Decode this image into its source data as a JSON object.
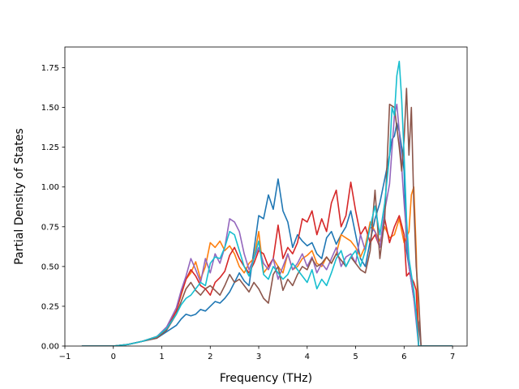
{
  "chart_data": {
    "type": "line",
    "title": "",
    "xlabel": "Frequency (THz)",
    "ylabel": "Partial Density of States",
    "xlim": [
      -1,
      7.3
    ],
    "ylim": [
      0,
      1.88
    ],
    "xticks": [
      -1,
      0,
      1,
      2,
      3,
      4,
      5,
      6,
      7
    ],
    "yticks": [
      0.0,
      0.25,
      0.5,
      0.75,
      1.0,
      1.25,
      1.5,
      1.75
    ],
    "xtick_labels": [
      "−1",
      "0",
      "1",
      "2",
      "3",
      "4",
      "5",
      "6",
      "7"
    ],
    "ytick_labels": [
      "0.00",
      "0.25",
      "0.50",
      "0.75",
      "1.00",
      "1.25",
      "1.50",
      "1.75"
    ],
    "grid": false,
    "legend": "none",
    "series": [
      {
        "color": "#1f77b4",
        "x": [
          -0.65,
          0.0,
          0.3,
          0.6,
          0.9,
          1.1,
          1.3,
          1.4,
          1.5,
          1.6,
          1.7,
          1.8,
          1.9,
          2.0,
          2.1,
          2.2,
          2.3,
          2.4,
          2.5,
          2.6,
          2.7,
          2.8,
          2.9,
          3.0,
          3.1,
          3.2,
          3.3,
          3.4,
          3.5,
          3.6,
          3.7,
          3.8,
          3.9,
          4.0,
          4.1,
          4.2,
          4.3,
          4.4,
          4.5,
          4.6,
          4.7,
          4.8,
          4.9,
          5.0,
          5.1,
          5.2,
          5.3,
          5.4,
          5.5,
          5.6,
          5.7,
          5.75,
          5.8,
          5.85,
          5.9,
          5.95,
          6.0,
          6.05,
          6.1,
          6.2,
          6.25,
          6.3,
          6.35,
          7.0
        ],
        "y": [
          0.0,
          0.0,
          0.01,
          0.03,
          0.05,
          0.09,
          0.13,
          0.17,
          0.2,
          0.19,
          0.2,
          0.23,
          0.22,
          0.25,
          0.28,
          0.27,
          0.3,
          0.34,
          0.4,
          0.46,
          0.41,
          0.38,
          0.6,
          0.82,
          0.8,
          0.95,
          0.86,
          1.05,
          0.85,
          0.78,
          0.62,
          0.7,
          0.66,
          0.63,
          0.65,
          0.58,
          0.55,
          0.68,
          0.72,
          0.64,
          0.7,
          0.75,
          0.85,
          0.7,
          0.55,
          0.5,
          0.66,
          0.8,
          0.9,
          1.05,
          1.2,
          1.3,
          1.32,
          1.4,
          1.35,
          1.25,
          1.1,
          0.6,
          0.5,
          0.3,
          0.2,
          0.15,
          0.0,
          0.0
        ]
      },
      {
        "color": "#ff7f0e",
        "x": [
          -0.65,
          0.0,
          0.3,
          0.6,
          0.9,
          1.1,
          1.3,
          1.4,
          1.5,
          1.6,
          1.7,
          1.8,
          1.9,
          2.0,
          2.1,
          2.2,
          2.3,
          2.4,
          2.5,
          2.6,
          2.7,
          2.8,
          2.9,
          3.0,
          3.1,
          3.2,
          3.3,
          3.4,
          3.5,
          3.6,
          3.7,
          3.8,
          3.9,
          4.0,
          4.1,
          4.2,
          4.3,
          4.4,
          4.5,
          4.6,
          4.7,
          4.8,
          4.9,
          5.0,
          5.1,
          5.2,
          5.3,
          5.4,
          5.5,
          5.6,
          5.7,
          5.8,
          5.9,
          6.0,
          6.1,
          6.15,
          6.2,
          6.25,
          6.3,
          7.0
        ],
        "y": [
          0.0,
          0.0,
          0.01,
          0.03,
          0.06,
          0.11,
          0.22,
          0.32,
          0.42,
          0.46,
          0.53,
          0.42,
          0.5,
          0.65,
          0.62,
          0.66,
          0.6,
          0.63,
          0.58,
          0.5,
          0.46,
          0.52,
          0.55,
          0.72,
          0.46,
          0.5,
          0.55,
          0.5,
          0.46,
          0.58,
          0.48,
          0.5,
          0.55,
          0.57,
          0.6,
          0.52,
          0.5,
          0.56,
          0.52,
          0.58,
          0.7,
          0.68,
          0.66,
          0.62,
          0.56,
          0.63,
          0.78,
          0.72,
          0.66,
          0.75,
          0.68,
          0.7,
          0.8,
          0.65,
          0.72,
          0.95,
          1.0,
          0.6,
          0.0,
          0.0
        ]
      },
      {
        "color": "#d62728",
        "x": [
          -0.65,
          0.0,
          0.3,
          0.6,
          0.9,
          1.1,
          1.3,
          1.4,
          1.5,
          1.6,
          1.7,
          1.8,
          1.9,
          2.0,
          2.1,
          2.2,
          2.3,
          2.4,
          2.5,
          2.6,
          2.7,
          2.8,
          2.9,
          3.0,
          3.1,
          3.2,
          3.3,
          3.4,
          3.5,
          3.6,
          3.7,
          3.8,
          3.9,
          4.0,
          4.1,
          4.2,
          4.3,
          4.4,
          4.5,
          4.6,
          4.7,
          4.8,
          4.9,
          5.0,
          5.1,
          5.2,
          5.3,
          5.4,
          5.5,
          5.6,
          5.7,
          5.8,
          5.9,
          6.0,
          6.05,
          6.1,
          6.2,
          6.25,
          6.3,
          7.0
        ],
        "y": [
          0.0,
          0.0,
          0.01,
          0.03,
          0.06,
          0.11,
          0.22,
          0.33,
          0.42,
          0.48,
          0.44,
          0.38,
          0.36,
          0.32,
          0.4,
          0.43,
          0.47,
          0.57,
          0.62,
          0.55,
          0.5,
          0.46,
          0.52,
          0.6,
          0.58,
          0.5,
          0.55,
          0.76,
          0.55,
          0.62,
          0.58,
          0.65,
          0.8,
          0.78,
          0.85,
          0.7,
          0.8,
          0.72,
          0.9,
          0.98,
          0.75,
          0.82,
          1.03,
          0.85,
          0.7,
          0.75,
          0.65,
          0.7,
          0.62,
          0.8,
          0.65,
          0.75,
          0.82,
          0.7,
          0.44,
          0.46,
          0.4,
          0.35,
          0.0,
          0.0
        ]
      },
      {
        "color": "#9467bd",
        "x": [
          -0.65,
          0.0,
          0.3,
          0.6,
          0.9,
          1.1,
          1.3,
          1.4,
          1.5,
          1.6,
          1.7,
          1.8,
          1.9,
          2.0,
          2.1,
          2.2,
          2.3,
          2.4,
          2.5,
          2.6,
          2.7,
          2.8,
          2.9,
          3.0,
          3.1,
          3.2,
          3.3,
          3.4,
          3.5,
          3.6,
          3.7,
          3.8,
          3.9,
          4.0,
          4.1,
          4.2,
          4.3,
          4.4,
          4.5,
          4.6,
          4.7,
          4.8,
          4.9,
          5.0,
          5.1,
          5.2,
          5.3,
          5.4,
          5.5,
          5.6,
          5.7,
          5.8,
          5.85,
          5.9,
          6.0,
          6.1,
          6.2,
          6.3,
          7.0
        ],
        "y": [
          0.0,
          0.0,
          0.01,
          0.03,
          0.06,
          0.12,
          0.24,
          0.35,
          0.44,
          0.55,
          0.48,
          0.4,
          0.55,
          0.46,
          0.58,
          0.52,
          0.62,
          0.8,
          0.78,
          0.72,
          0.58,
          0.48,
          0.55,
          0.62,
          0.52,
          0.48,
          0.55,
          0.42,
          0.5,
          0.58,
          0.48,
          0.52,
          0.58,
          0.5,
          0.56,
          0.46,
          0.52,
          0.48,
          0.55,
          0.62,
          0.5,
          0.56,
          0.58,
          0.52,
          0.7,
          0.6,
          0.75,
          0.72,
          0.62,
          0.85,
          1.02,
          1.45,
          1.52,
          1.35,
          0.9,
          0.5,
          0.3,
          0.0,
          0.0
        ]
      },
      {
        "color": "#8c564b",
        "x": [
          -0.65,
          0.0,
          0.3,
          0.6,
          0.9,
          1.1,
          1.3,
          1.4,
          1.5,
          1.6,
          1.7,
          1.8,
          1.9,
          2.0,
          2.1,
          2.2,
          2.3,
          2.4,
          2.5,
          2.6,
          2.7,
          2.8,
          2.9,
          3.0,
          3.1,
          3.2,
          3.3,
          3.4,
          3.5,
          3.6,
          3.7,
          3.8,
          3.9,
          4.0,
          4.1,
          4.2,
          4.3,
          4.4,
          4.5,
          4.6,
          4.7,
          4.8,
          4.9,
          5.0,
          5.1,
          5.2,
          5.3,
          5.4,
          5.5,
          5.6,
          5.7,
          5.8,
          5.9,
          5.95,
          6.0,
          6.05,
          6.1,
          6.15,
          6.2,
          6.25,
          6.3,
          6.35,
          7.0
        ],
        "y": [
          0.0,
          0.0,
          0.01,
          0.03,
          0.05,
          0.1,
          0.2,
          0.28,
          0.36,
          0.4,
          0.35,
          0.32,
          0.36,
          0.38,
          0.35,
          0.32,
          0.38,
          0.45,
          0.4,
          0.42,
          0.38,
          0.34,
          0.4,
          0.36,
          0.3,
          0.27,
          0.45,
          0.5,
          0.35,
          0.42,
          0.38,
          0.45,
          0.5,
          0.48,
          0.55,
          0.5,
          0.52,
          0.56,
          0.52,
          0.58,
          0.54,
          0.5,
          0.56,
          0.52,
          0.48,
          0.46,
          0.6,
          0.98,
          0.55,
          0.8,
          1.52,
          1.5,
          1.25,
          1.1,
          1.3,
          1.62,
          1.2,
          1.5,
          0.9,
          0.5,
          0.3,
          0.0,
          0.0
        ]
      },
      {
        "color": "#17becf",
        "x": [
          -0.65,
          0.0,
          0.3,
          0.6,
          0.9,
          1.1,
          1.3,
          1.4,
          1.5,
          1.6,
          1.7,
          1.8,
          1.9,
          2.0,
          2.1,
          2.2,
          2.3,
          2.4,
          2.5,
          2.6,
          2.7,
          2.8,
          2.9,
          3.0,
          3.1,
          3.2,
          3.3,
          3.4,
          3.5,
          3.6,
          3.7,
          3.8,
          3.9,
          4.0,
          4.1,
          4.2,
          4.3,
          4.4,
          4.5,
          4.6,
          4.7,
          4.8,
          4.9,
          5.0,
          5.1,
          5.2,
          5.3,
          5.4,
          5.5,
          5.6,
          5.7,
          5.75,
          5.8,
          5.85,
          5.9,
          5.95,
          6.0,
          6.05,
          6.1,
          6.2,
          6.25,
          6.3,
          7.0
        ],
        "y": [
          0.0,
          0.0,
          0.01,
          0.03,
          0.06,
          0.11,
          0.2,
          0.26,
          0.3,
          0.32,
          0.36,
          0.4,
          0.38,
          0.52,
          0.56,
          0.55,
          0.62,
          0.72,
          0.7,
          0.6,
          0.5,
          0.44,
          0.55,
          0.66,
          0.45,
          0.42,
          0.5,
          0.46,
          0.42,
          0.45,
          0.52,
          0.48,
          0.44,
          0.4,
          0.48,
          0.36,
          0.42,
          0.38,
          0.46,
          0.55,
          0.6,
          0.5,
          0.56,
          0.6,
          0.5,
          0.6,
          0.75,
          0.88,
          0.7,
          0.9,
          1.2,
          1.5,
          1.45,
          1.7,
          1.79,
          1.55,
          1.2,
          0.8,
          0.55,
          0.35,
          0.2,
          0.0,
          0.0
        ]
      }
    ]
  }
}
